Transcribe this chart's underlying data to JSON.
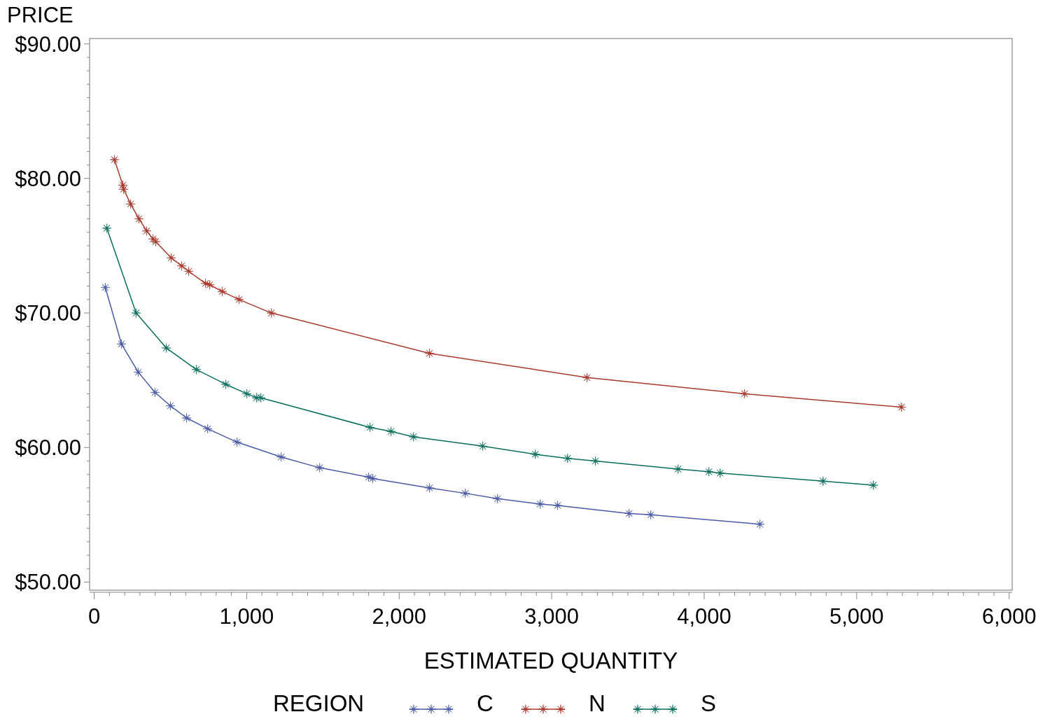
{
  "chart_data": {
    "type": "line",
    "ylabel": "PRICE",
    "xlabel": "ESTIMATED QUANTITY",
    "legend_title": "REGION",
    "legend": "bottom",
    "grid": false,
    "marker": "star",
    "line_style": "solid",
    "xlim": [
      -30,
      6020
    ],
    "ylim": [
      49.4,
      90.4
    ],
    "xticks": [
      0,
      {
        "value": 100,
        "label": null
      },
      {
        "value": 200,
        "label": null
      },
      {
        "value": 300,
        "label": null
      },
      {
        "value": 400,
        "label": null
      },
      {
        "value": 500,
        "label": null
      },
      {
        "value": 600,
        "label": null
      },
      {
        "value": 700,
        "label": null
      },
      {
        "value": 800,
        "label": null
      },
      {
        "value": 900,
        "label": null
      },
      {
        "value": 1000,
        "label": "1,000"
      },
      {
        "value": 1100,
        "label": null
      },
      {
        "value": 1200,
        "label": null
      },
      {
        "value": 1300,
        "label": null
      },
      {
        "value": 1400,
        "label": null
      },
      {
        "value": 1500,
        "label": null
      },
      {
        "value": 1600,
        "label": null
      },
      {
        "value": 1700,
        "label": null
      },
      {
        "value": 1800,
        "label": null
      },
      {
        "value": 1900,
        "label": null
      },
      {
        "value": 2000,
        "label": "2,000"
      },
      {
        "value": 2100,
        "label": null
      },
      {
        "value": 2200,
        "label": null
      },
      {
        "value": 2300,
        "label": null
      },
      {
        "value": 2400,
        "label": null
      },
      {
        "value": 2500,
        "label": null
      },
      {
        "value": 2600,
        "label": null
      },
      {
        "value": 2700,
        "label": null
      },
      {
        "value": 2800,
        "label": null
      },
      {
        "value": 2900,
        "label": null
      },
      {
        "value": 3000,
        "label": "3,000"
      },
      {
        "value": 3100,
        "label": null
      },
      {
        "value": 3200,
        "label": null
      },
      {
        "value": 3300,
        "label": null
      },
      {
        "value": 3400,
        "label": null
      },
      {
        "value": 3500,
        "label": null
      },
      {
        "value": 3600,
        "label": null
      },
      {
        "value": 3700,
        "label": null
      },
      {
        "value": 3800,
        "label": null
      },
      {
        "value": 3900,
        "label": null
      },
      {
        "value": 4000,
        "label": "4,000"
      },
      {
        "value": 4100,
        "label": null
      },
      {
        "value": 4200,
        "label": null
      },
      {
        "value": 4300,
        "label": null
      },
      {
        "value": 4400,
        "label": null
      },
      {
        "value": 4500,
        "label": null
      },
      {
        "value": 4600,
        "label": null
      },
      {
        "value": 4700,
        "label": null
      },
      {
        "value": 4800,
        "label": null
      },
      {
        "value": 4900,
        "label": null
      },
      {
        "value": 5000,
        "label": "5,000"
      },
      {
        "value": 5100,
        "label": null
      },
      {
        "value": 5200,
        "label": null
      },
      {
        "value": 5300,
        "label": null
      },
      {
        "value": 5400,
        "label": null
      },
      {
        "value": 5500,
        "label": null
      },
      {
        "value": 5600,
        "label": null
      },
      {
        "value": 5700,
        "label": null
      },
      {
        "value": 5800,
        "label": null
      },
      {
        "value": 5900,
        "label": null
      },
      {
        "value": 6000,
        "label": "6,000"
      }
    ],
    "yticks": [
      {
        "value": 50,
        "label": "$50.00"
      },
      {
        "value": 51,
        "label": null
      },
      {
        "value": 52,
        "label": null
      },
      {
        "value": 53,
        "label": null
      },
      {
        "value": 54,
        "label": null
      },
      {
        "value": 55,
        "label": null
      },
      {
        "value": 56,
        "label": null
      },
      {
        "value": 57,
        "label": null
      },
      {
        "value": 58,
        "label": null
      },
      {
        "value": 59,
        "label": null
      },
      {
        "value": 60,
        "label": "$60.00"
      },
      {
        "value": 61,
        "label": null
      },
      {
        "value": 62,
        "label": null
      },
      {
        "value": 63,
        "label": null
      },
      {
        "value": 64,
        "label": null
      },
      {
        "value": 65,
        "label": null
      },
      {
        "value": 66,
        "label": null
      },
      {
        "value": 67,
        "label": null
      },
      {
        "value": 68,
        "label": null
      },
      {
        "value": 69,
        "label": null
      },
      {
        "value": 70,
        "label": "$70.00"
      },
      {
        "value": 71,
        "label": null
      },
      {
        "value": 72,
        "label": null
      },
      {
        "value": 73,
        "label": null
      },
      {
        "value": 74,
        "label": null
      },
      {
        "value": 75,
        "label": null
      },
      {
        "value": 76,
        "label": null
      },
      {
        "value": 77,
        "label": null
      },
      {
        "value": 78,
        "label": null
      },
      {
        "value": 79,
        "label": null
      },
      {
        "value": 80,
        "label": "$80.00"
      },
      {
        "value": 81,
        "label": null
      },
      {
        "value": 82,
        "label": null
      },
      {
        "value": 83,
        "label": null
      },
      {
        "value": 84,
        "label": null
      },
      {
        "value": 85,
        "label": null
      },
      {
        "value": 86,
        "label": null
      },
      {
        "value": 87,
        "label": null
      },
      {
        "value": 88,
        "label": null
      },
      {
        "value": 89,
        "label": null
      },
      {
        "value": 90,
        "label": "$90.00"
      }
    ],
    "series": [
      {
        "name": "C",
        "color": "#4b5aa6",
        "x": [
          73,
          179,
          289,
          399,
          500,
          606,
          744,
          937,
          1226,
          1478,
          1800,
          1827,
          2199,
          2433,
          2645,
          2925,
          3039,
          3508,
          3650,
          4366
        ],
        "values": [
          71.9,
          67.7,
          65.6,
          64.1,
          63.1,
          62.2,
          61.4,
          60.4,
          59.3,
          58.5,
          57.8,
          57.7,
          57.0,
          56.6,
          56.2,
          55.8,
          55.7,
          55.1,
          55.0,
          54.3
        ]
      },
      {
        "name": "N",
        "color": "#a8382c",
        "x": [
          133,
          188,
          193,
          239,
          294,
          344,
          386,
          404,
          505,
          574,
          620,
          730,
          758,
          840,
          950,
          1162,
          2199,
          3232,
          4265,
          5294
        ],
        "values": [
          81.4,
          79.5,
          79.2,
          78.1,
          77.0,
          76.1,
          75.5,
          75.3,
          74.1,
          73.5,
          73.1,
          72.2,
          72.1,
          71.6,
          71.0,
          70.0,
          67.0,
          65.2,
          64.0,
          63.0
        ]
      },
      {
        "name": "S",
        "color": "#0b6e5c",
        "x": [
          83,
          275,
          473,
          670,
          863,
          1001,
          1065,
          1093,
          1809,
          1947,
          2094,
          2548,
          2893,
          3104,
          3287,
          3829,
          4031,
          4105,
          4780,
          5110
        ],
        "values": [
          76.3,
          70.0,
          67.4,
          65.8,
          64.7,
          64.0,
          63.7,
          63.7,
          61.5,
          61.2,
          60.8,
          60.1,
          59.5,
          59.2,
          59.0,
          58.4,
          58.2,
          58.1,
          57.5,
          57.2
        ]
      }
    ]
  }
}
